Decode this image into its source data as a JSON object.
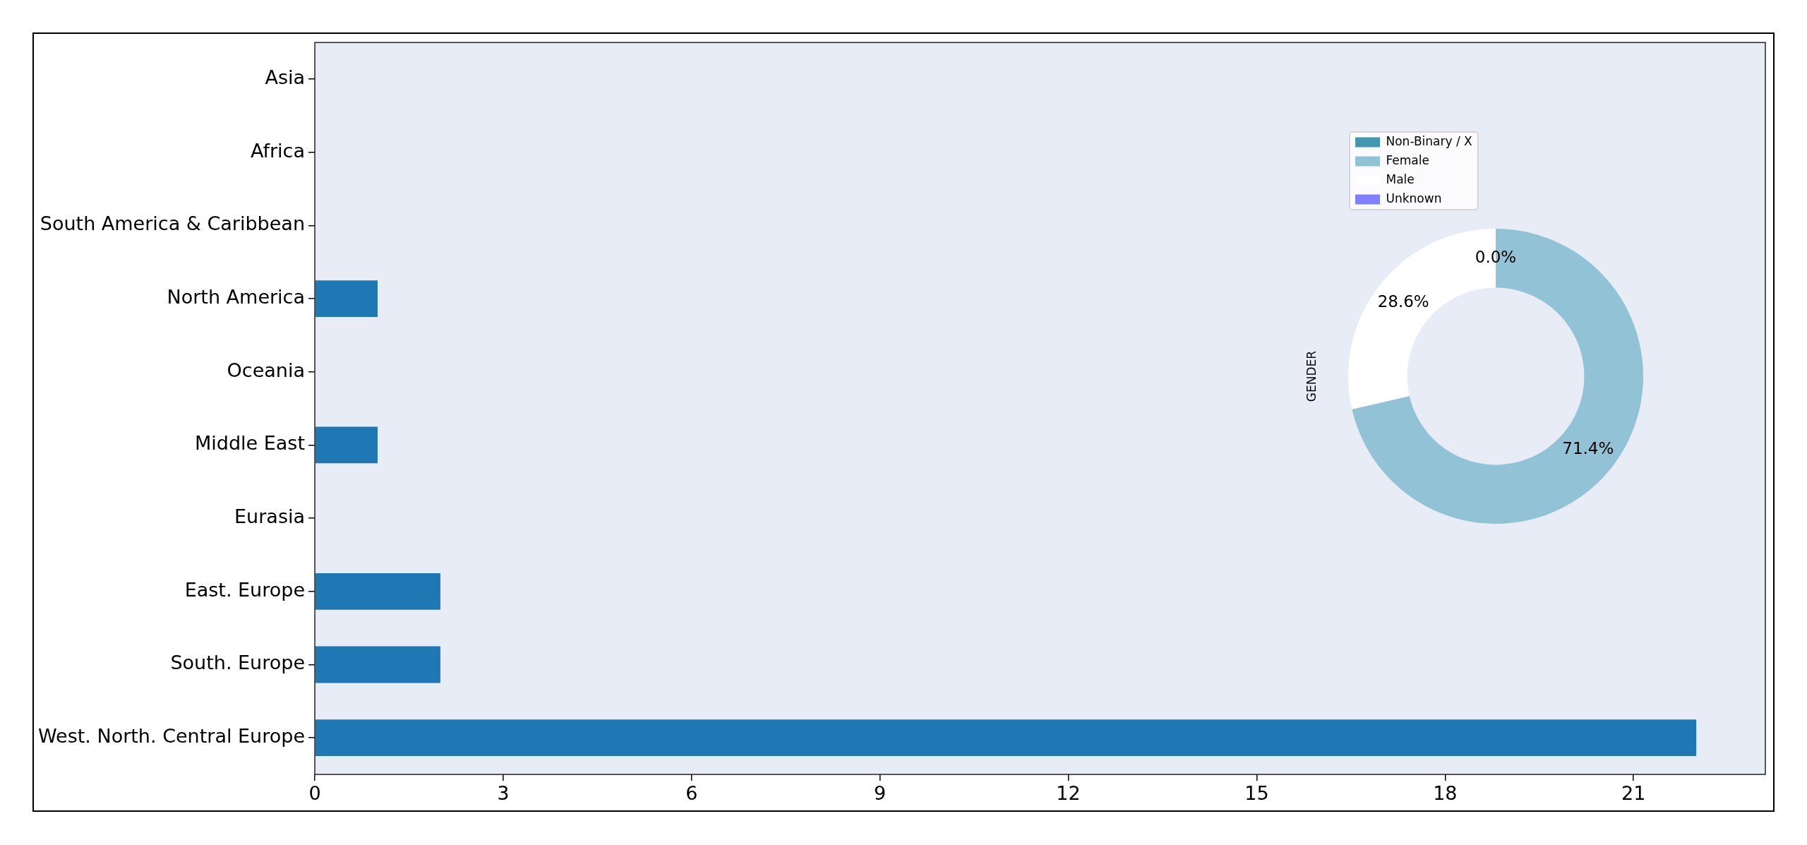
{
  "chart_data": [
    {
      "type": "bar",
      "orientation": "horizontal",
      "categories": [
        "Asia",
        "Africa",
        "South America & Caribbean",
        "North America",
        "Oceania",
        "Middle East",
        "Eurasia",
        "East. Europe",
        "South. Europe",
        "West. North. Central Europe"
      ],
      "values": [
        0,
        0,
        0,
        1,
        0,
        1,
        0,
        2,
        2,
        22
      ],
      "color": "#1f77b4",
      "xlim": [
        0,
        23.1
      ],
      "xticks": [
        0,
        3,
        6,
        9,
        12,
        15,
        18,
        21
      ]
    },
    {
      "type": "donut",
      "ylabel": "GENDER",
      "categories": [
        "Non-Binary / X",
        "Female",
        "Male",
        "Unknown"
      ],
      "values": [
        0,
        71.4,
        28.6,
        0
      ],
      "colors": [
        "#4398af",
        "#92c2d5",
        "#ffffff",
        "#8080ff"
      ],
      "legend": "top left",
      "value_labels": [
        "0.0%",
        "71.4%",
        "28.6%",
        null
      ]
    }
  ]
}
